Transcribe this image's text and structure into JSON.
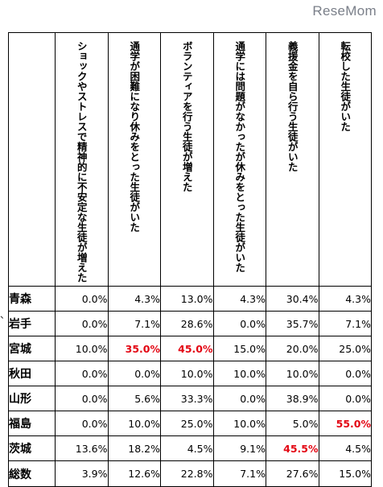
{
  "logo": "ReseMom",
  "side_marker": "、",
  "table": {
    "columns": [
      "ショックやストレスで精神的に不安定な生徒が増えた",
      "通学が困難になり休みをとった生徒がいた",
      "ボランティアを行う生徒が増えた",
      "通学には問題がなかったが休みをとった生徒がいた",
      "義援金を自ら行う生徒がいた",
      "転校した生徒がいた"
    ],
    "rows": [
      {
        "label": "青森",
        "values": [
          "0.0%",
          "4.3%",
          "13.0%",
          "4.3%",
          "30.4%",
          "4.3%"
        ],
        "highlight": [
          false,
          false,
          false,
          false,
          false,
          false
        ]
      },
      {
        "label": "岩手",
        "values": [
          "0.0%",
          "7.1%",
          "28.6%",
          "0.0%",
          "35.7%",
          "7.1%"
        ],
        "highlight": [
          false,
          false,
          false,
          false,
          false,
          false
        ]
      },
      {
        "label": "宮城",
        "values": [
          "10.0%",
          "35.0%",
          "45.0%",
          "15.0%",
          "20.0%",
          "25.0%"
        ],
        "highlight": [
          false,
          true,
          true,
          false,
          false,
          false
        ]
      },
      {
        "label": "秋田",
        "values": [
          "0.0%",
          "0.0%",
          "10.0%",
          "10.0%",
          "10.0%",
          "0.0%"
        ],
        "highlight": [
          false,
          false,
          false,
          false,
          false,
          false
        ]
      },
      {
        "label": "山形",
        "values": [
          "0.0%",
          "5.6%",
          "33.3%",
          "0.0%",
          "38.9%",
          "0.0%"
        ],
        "highlight": [
          false,
          false,
          false,
          false,
          false,
          false
        ]
      },
      {
        "label": "福島",
        "values": [
          "0.0%",
          "10.0%",
          "25.0%",
          "10.0%",
          "5.0%",
          "55.0%"
        ],
        "highlight": [
          false,
          false,
          false,
          false,
          false,
          true
        ]
      },
      {
        "label": "茨城",
        "values": [
          "13.6%",
          "18.2%",
          "4.5%",
          "9.1%",
          "45.5%",
          "4.5%"
        ],
        "highlight": [
          false,
          false,
          false,
          false,
          true,
          false
        ]
      },
      {
        "label": "総数",
        "values": [
          "3.9%",
          "12.6%",
          "22.8%",
          "7.1%",
          "27.6%",
          "15.0%"
        ],
        "highlight": [
          false,
          false,
          false,
          false,
          false,
          false
        ]
      }
    ],
    "highlight_color": "#e30613"
  }
}
